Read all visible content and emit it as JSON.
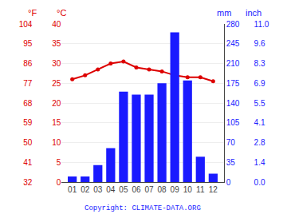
{
  "chart_data": {
    "type": "bar",
    "categories": [
      "01",
      "02",
      "03",
      "04",
      "05",
      "06",
      "07",
      "08",
      "09",
      "10",
      "11",
      "12"
    ],
    "series": [
      {
        "type": "bar",
        "axis": "y2",
        "color": "#1a1aff",
        "values": [
          10,
          10,
          30,
          60,
          160,
          155,
          155,
          175,
          265,
          180,
          45,
          15
        ]
      },
      {
        "type": "line",
        "color": "#dd0000",
        "marker": "circle",
        "values": [
          26,
          27,
          28.5,
          30,
          30.5,
          29,
          28.5,
          28,
          27,
          26.5,
          26.5,
          25.5
        ]
      }
    ],
    "ylabel": "°C",
    "ylim": [
      0,
      40
    ],
    "yticks": [
      0,
      5,
      10,
      15,
      20,
      25,
      30,
      35,
      40
    ],
    "y2label": "mm",
    "y2lim": [
      0,
      280
    ],
    "y2ticks": [
      0,
      35,
      70,
      105,
      140,
      175,
      210,
      245,
      280
    ],
    "y3label": "°F",
    "y3lim": [
      32,
      104
    ],
    "y3ticks": [
      32,
      41,
      50,
      59,
      68,
      77,
      86,
      95,
      104
    ],
    "y4label": "inch",
    "y4lim": [
      0,
      280
    ],
    "y4ticks": [
      {
        "value": 0,
        "label": "0.0"
      },
      {
        "value": 35,
        "label": "1.4"
      },
      {
        "value": 70,
        "label": "2.8"
      },
      {
        "value": 105,
        "label": "4.1"
      },
      {
        "value": 140,
        "label": "5.5"
      },
      {
        "value": 175,
        "label": "6.9"
      },
      {
        "value": 210,
        "label": "8.3"
      },
      {
        "value": 245,
        "label": "9.6"
      },
      {
        "value": 280,
        "label": "11.0"
      }
    ],
    "grid": true,
    "annotations": [
      "Copyright: CLIMATE-DATA.ORG"
    ]
  }
}
